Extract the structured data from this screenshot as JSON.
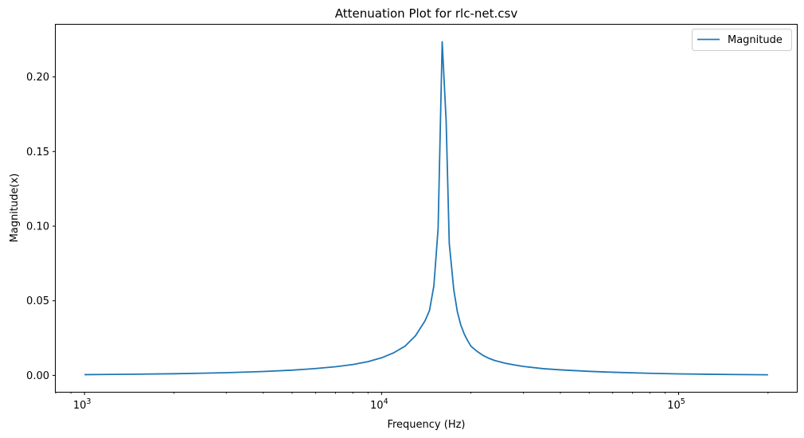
{
  "chart_data": {
    "type": "line",
    "title": "Attenuation Plot for rlc-net.csv",
    "xlabel": "Frequency (Hz)",
    "ylabel": "Magnitude(x)",
    "xscale": "log",
    "xlim": [
      800,
      250000
    ],
    "ylim": [
      -0.011,
      0.235
    ],
    "xticks": [
      {
        "value": 1000,
        "base": "10",
        "exp": "3"
      },
      {
        "value": 10000,
        "base": "10",
        "exp": "4"
      },
      {
        "value": 100000,
        "base": "10",
        "exp": "5"
      }
    ],
    "yticks": [
      {
        "value": 0.0,
        "label": "0.00"
      },
      {
        "value": 0.05,
        "label": "0.05"
      },
      {
        "value": 0.1,
        "label": "0.10"
      },
      {
        "value": 0.15,
        "label": "0.15"
      },
      {
        "value": 0.2,
        "label": "0.20"
      }
    ],
    "grid": false,
    "legend_position": "top-right",
    "series": [
      {
        "name": "Magnitude",
        "color": "#1f77b4",
        "x": [
          1000,
          1500,
          2000,
          3000,
          4000,
          5000,
          6000,
          7000,
          8000,
          9000,
          10000,
          11000,
          12000,
          13000,
          14000,
          14500,
          15000,
          15500,
          16000,
          16500,
          16900,
          17500,
          18000,
          18500,
          19000,
          19500,
          20000,
          21000,
          22000,
          23000,
          24000,
          26000,
          28000,
          30000,
          35000,
          40000,
          50000,
          60000,
          80000,
          100000,
          150000,
          200000
        ],
        "y": [
          0.0005,
          0.0008,
          0.0011,
          0.0018,
          0.0026,
          0.0035,
          0.0046,
          0.0058,
          0.0073,
          0.0092,
          0.0118,
          0.0152,
          0.0196,
          0.0265,
          0.0365,
          0.0435,
          0.06,
          0.0985,
          0.2235,
          0.17,
          0.0885,
          0.0575,
          0.0425,
          0.0335,
          0.0275,
          0.0232,
          0.0195,
          0.016,
          0.0133,
          0.0114,
          0.01,
          0.0082,
          0.007,
          0.006,
          0.0045,
          0.0037,
          0.0027,
          0.0021,
          0.0014,
          0.001,
          0.0006,
          0.0004
        ]
      }
    ]
  }
}
